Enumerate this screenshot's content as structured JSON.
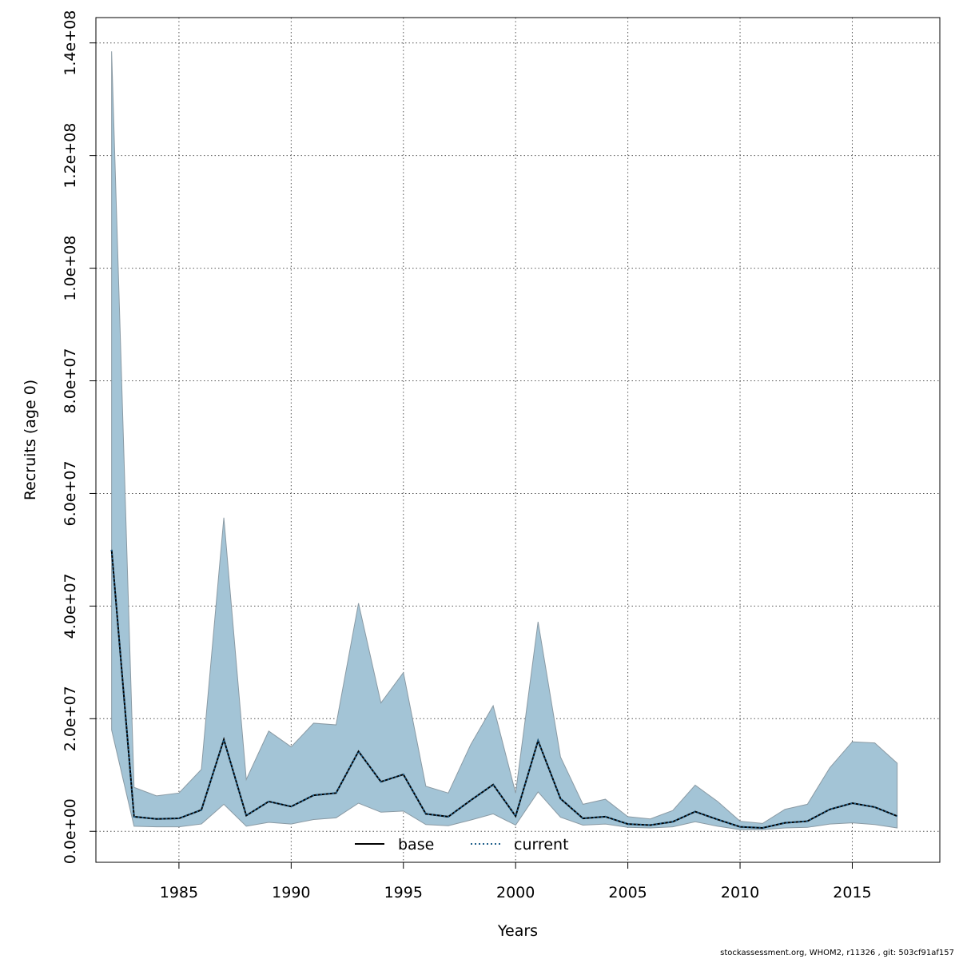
{
  "chart_data": {
    "type": "area",
    "xlabel": "Years",
    "ylabel": "Recruits (age 0)",
    "xlim": [
      1981.3,
      2018.9
    ],
    "ylim": [
      -5500000,
      144500000
    ],
    "x_ticks": [
      1985,
      1990,
      1995,
      2000,
      2005,
      2010,
      2015
    ],
    "x_tick_labels": [
      "1985",
      "1990",
      "1995",
      "2000",
      "2005",
      "2010",
      "2015"
    ],
    "y_ticks": [
      0,
      20000000,
      40000000,
      60000000,
      80000000,
      100000000,
      120000000,
      140000000
    ],
    "y_tick_labels": [
      "0.0e+00",
      "2.0e+07",
      "4.0e+07",
      "6.0e+07",
      "8.0e+07",
      "1.0e+08",
      "1.2e+08",
      "1.4e+08"
    ],
    "grid": true,
    "legend_position": "bottom-center",
    "years": [
      1982,
      1983,
      1984,
      1985,
      1986,
      1987,
      1988,
      1989,
      1990,
      1991,
      1992,
      1993,
      1994,
      1995,
      1996,
      1997,
      1998,
      1999,
      2000,
      2001,
      2002,
      2003,
      2004,
      2005,
      2006,
      2007,
      2008,
      2009,
      2010,
      2011,
      2012,
      2013,
      2014,
      2015,
      2016,
      2017
    ],
    "band": {
      "color": "#a3c4d6",
      "upper": [
        138500000,
        7800000,
        6300000,
        6800000,
        11000000,
        55700000,
        9200000,
        17800000,
        15000000,
        19200000,
        18900000,
        40500000,
        22800000,
        28200000,
        8000000,
        6800000,
        15400000,
        22300000,
        6800000,
        37200000,
        13200000,
        4800000,
        5700000,
        2600000,
        2200000,
        3700000,
        8200000,
        5300000,
        1800000,
        1400000,
        3900000,
        4800000,
        11300000,
        15900000,
        15700000,
        12100000
      ],
      "lower": [
        18000000,
        900000,
        800000,
        800000,
        1300000,
        4800000,
        900000,
        1600000,
        1300000,
        2100000,
        2400000,
        5000000,
        3400000,
        3600000,
        1200000,
        1000000,
        2000000,
        3100000,
        1100000,
        7000000,
        2500000,
        1100000,
        1300000,
        700000,
        600000,
        800000,
        1700000,
        900000,
        300000,
        300000,
        600000,
        700000,
        1300000,
        1500000,
        1200000,
        600000
      ]
    },
    "series": [
      {
        "name": "base",
        "color": "#000000",
        "values": [
          50000000,
          2600000,
          2200000,
          2300000,
          3800000,
          16300000,
          2800000,
          5300000,
          4400000,
          6400000,
          6800000,
          14200000,
          8800000,
          10100000,
          3100000,
          2600000,
          5500000,
          8300000,
          2700000,
          16100000,
          5800000,
          2300000,
          2600000,
          1300000,
          1100000,
          1700000,
          3500000,
          2100000,
          800000,
          600000,
          1500000,
          1800000,
          3900000,
          5000000,
          4300000,
          2700000
        ]
      },
      {
        "name": "current",
        "color": "#1f5f8b",
        "values": [
          50000000,
          2600000,
          2200000,
          2300000,
          3800000,
          16300000,
          2800000,
          5300000,
          4400000,
          6400000,
          6800000,
          14200000,
          8800000,
          10100000,
          3100000,
          2600000,
          5500000,
          8300000,
          2700000,
          16100000,
          5800000,
          2300000,
          2600000,
          1300000,
          1100000,
          1700000,
          3500000,
          2100000,
          800000,
          600000,
          1500000,
          1800000,
          3900000,
          5000000,
          4300000,
          2700000
        ]
      }
    ]
  },
  "footer": "stockassessment.org, WHOM2, r11326 , git: 503cf91af157"
}
